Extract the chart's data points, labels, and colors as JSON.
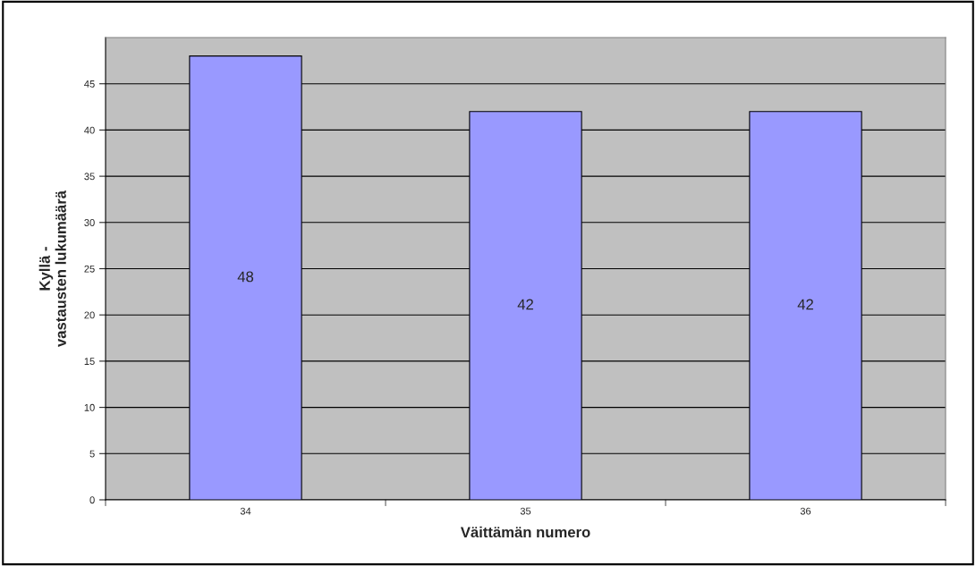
{
  "chart_data": {
    "type": "bar",
    "xlabel": "Väittämän numero",
    "ylabel": "Kyllä -\nvastausten lukumäärä",
    "categories": [
      "34",
      "35",
      "36"
    ],
    "values": [
      48,
      42,
      42
    ],
    "color": "#9999ff",
    "ylim": [
      0,
      50
    ],
    "yticks": [
      0,
      5,
      10,
      15,
      20,
      25,
      30,
      35,
      40,
      45
    ],
    "grid": "y",
    "data_labels": true
  }
}
